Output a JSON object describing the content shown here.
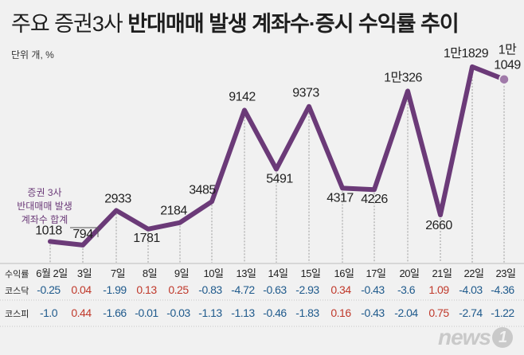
{
  "header": {
    "title_light": "주요 증권3사",
    "title_bold": "반대매매 발생 계좌수·증시 수익률 추이",
    "unit": "단위 개, %"
  },
  "legend": {
    "series_label": [
      "증권 3사",
      "반대매매 발생",
      "계좌수 합계"
    ]
  },
  "table": {
    "header_label": "수익률",
    "kosdaq_label": "코스닥",
    "kospi_label": "코스피",
    "pos_color": "#c0392b",
    "neg_color": "#1f5a8c"
  },
  "logo": {
    "text": "news",
    "mark": "1"
  },
  "chart_data": {
    "type": "line",
    "line_color": "#6b3a78",
    "x": [
      "6월 2일",
      "3일",
      "7일",
      "8일",
      "9일",
      "10일",
      "13일",
      "14일",
      "15일",
      "16일",
      "17일",
      "20일",
      "21일",
      "22일",
      "23일"
    ],
    "value_labels": [
      "1018",
      "794",
      "2933",
      "1781",
      "2184",
      "3485",
      "9142",
      "5491",
      "9373",
      "4317",
      "4226",
      "1만326",
      "2660",
      "1만1829",
      "1만\n1049"
    ],
    "values": [
      1018,
      794,
      2933,
      1781,
      2184,
      3485,
      9142,
      5491,
      9373,
      4317,
      4226,
      10326,
      2660,
      11829,
      11049
    ],
    "kosdaq": [
      "-0.25",
      "0.04",
      "-1.99",
      "0.13",
      "0.25",
      "-0.83",
      "-4.72",
      "-0.63",
      "-2.93",
      "0.34",
      "-0.43",
      "-3.6",
      "1.09",
      "-4.03",
      "-4.36"
    ],
    "kospi": [
      "-1.0",
      "0.44",
      "-1.66",
      "-0.01",
      "-0.03",
      "-1.13",
      "-1.13",
      "-0.46",
      "-1.83",
      "0.16",
      "-0.43",
      "-2.04",
      "0.75",
      "-2.74",
      "-1.22"
    ]
  }
}
